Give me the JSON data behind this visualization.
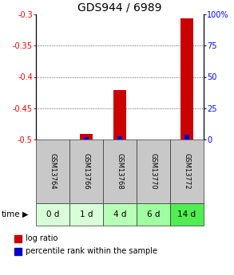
{
  "title": "GDS944 / 6989",
  "samples": [
    "GSM13764",
    "GSM13766",
    "GSM13768",
    "GSM13770",
    "GSM13772"
  ],
  "time_labels": [
    "0 d",
    "1 d",
    "4 d",
    "6 d",
    "14 d"
  ],
  "log_ratio": [
    null,
    -0.491,
    -0.421,
    null,
    -0.306
  ],
  "percentile_rank": [
    null,
    2.0,
    2.5,
    null,
    4.0
  ],
  "ylim_left": [
    -0.5,
    -0.3
  ],
  "ylim_right": [
    0,
    100
  ],
  "yticks_left": [
    -0.5,
    -0.45,
    -0.4,
    -0.35,
    -0.3
  ],
  "yticks_right": [
    0,
    25,
    50,
    75,
    100
  ],
  "bar_color_red": "#cc0000",
  "bar_color_blue": "#0000cc",
  "sample_bg_color": "#c8c8c8",
  "time_bg_colors": [
    "#d8ffd8",
    "#d8ffd8",
    "#b8ffb8",
    "#a0ffa0",
    "#50ee50"
  ],
  "title_fontsize": 10,
  "tick_fontsize": 7,
  "legend_fontsize": 7,
  "bar_width": 0.4,
  "blue_bar_width": 0.15
}
